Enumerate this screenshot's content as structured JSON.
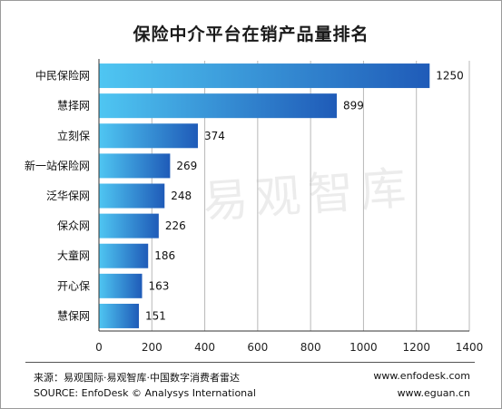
{
  "page": {
    "watermark": "易观智库"
  },
  "footer": {
    "source_cn": "来源：易观国际·易观智库·中国数字消费者雷达",
    "source_en": "SOURCE: EnfoDesk © Analysys International",
    "url_1": "www.enfodesk.com",
    "url_2": "www.eguan.cn"
  },
  "chart_data": {
    "type": "bar",
    "orientation": "horizontal",
    "title": "保险中介平台在销产品量排名",
    "categories": [
      "中民保险网",
      "慧择网",
      "立刻保",
      "新一站保险网",
      "泛华保网",
      "保众网",
      "大童网",
      "开心保",
      "慧保网"
    ],
    "values": [
      1250,
      899,
      374,
      269,
      248,
      226,
      186,
      163,
      151
    ],
    "xlabel": "",
    "ylabel": "",
    "xlim": [
      0,
      1400
    ],
    "xticks": [
      0,
      200,
      400,
      600,
      800,
      1000,
      1200,
      1400
    ],
    "grid": true,
    "legend": "none",
    "colors": {
      "bar_light": "#4fc6f2",
      "bar_dark": "#1f5bb8",
      "grid": "#b8b8b8",
      "axis": "#333333"
    }
  }
}
